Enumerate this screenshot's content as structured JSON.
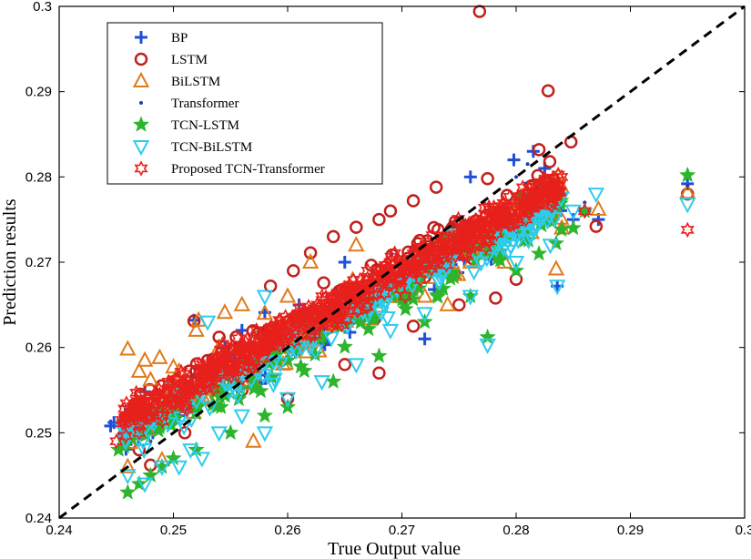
{
  "chart_data": {
    "type": "scatter",
    "title": "",
    "xlabel": "True Output value",
    "ylabel": "Prediction results",
    "xlim": [
      0.24,
      0.3
    ],
    "ylim": [
      0.24,
      0.3
    ],
    "xticks": [
      "0.24",
      "0.25",
      "0.26",
      "0.27",
      "0.28",
      "0.29",
      "0.3"
    ],
    "yticks": [
      "0.24",
      "0.25",
      "0.26",
      "0.27",
      "0.28",
      "0.29",
      "0.3"
    ],
    "grid": false,
    "legend_position": "top-left",
    "diagonal": {
      "style": "dashed",
      "color": "#000000",
      "from": [
        0.24,
        0.24
      ],
      "to": [
        0.3,
        0.3
      ]
    },
    "series": [
      {
        "name": "BP",
        "marker": "plus",
        "color": "#1f4fd8",
        "points": [
          [
            0.2445,
            0.2508
          ],
          [
            0.2448,
            0.2512
          ],
          [
            0.2458,
            0.2492
          ],
          [
            0.2462,
            0.2528
          ],
          [
            0.2475,
            0.2548
          ],
          [
            0.2482,
            0.25
          ],
          [
            0.2505,
            0.252
          ],
          [
            0.2518,
            0.2632
          ],
          [
            0.2532,
            0.258
          ],
          [
            0.2545,
            0.26
          ],
          [
            0.256,
            0.262
          ],
          [
            0.258,
            0.2641
          ],
          [
            0.261,
            0.265
          ],
          [
            0.265,
            0.27
          ],
          [
            0.27,
            0.27
          ],
          [
            0.272,
            0.261
          ],
          [
            0.276,
            0.28
          ],
          [
            0.2798,
            0.282
          ],
          [
            0.2815,
            0.283
          ],
          [
            0.2825,
            0.281
          ],
          [
            0.2836,
            0.2672
          ],
          [
            0.285,
            0.275
          ],
          [
            0.286,
            0.276
          ],
          [
            0.2872,
            0.275
          ],
          [
            0.295,
            0.2792
          ]
        ]
      },
      {
        "name": "LSTM",
        "marker": "circle",
        "color": "#c0201c",
        "points": [
          [
            0.2768,
            0.2994
          ],
          [
            0.2828,
            0.2901
          ],
          [
            0.2848,
            0.2841
          ],
          [
            0.282,
            0.2832
          ],
          [
            0.2775,
            0.2798
          ],
          [
            0.273,
            0.2788
          ],
          [
            0.271,
            0.2772
          ],
          [
            0.269,
            0.276
          ],
          [
            0.268,
            0.275
          ],
          [
            0.266,
            0.2741
          ],
          [
            0.264,
            0.273
          ],
          [
            0.262,
            0.2711
          ],
          [
            0.2605,
            0.269
          ],
          [
            0.2585,
            0.2672
          ],
          [
            0.254,
            0.2612
          ],
          [
            0.2518,
            0.2631
          ],
          [
            0.2462,
            0.252
          ],
          [
            0.247,
            0.248
          ],
          [
            0.248,
            0.2462
          ],
          [
            0.251,
            0.25
          ],
          [
            0.256,
            0.255
          ],
          [
            0.26,
            0.254
          ],
          [
            0.265,
            0.258
          ],
          [
            0.268,
            0.257
          ],
          [
            0.271,
            0.2625
          ],
          [
            0.275,
            0.265
          ],
          [
            0.2782,
            0.2658
          ],
          [
            0.28,
            0.268
          ],
          [
            0.287,
            0.2742
          ],
          [
            0.295,
            0.278
          ]
        ]
      },
      {
        "name": "BiLSTM",
        "marker": "triangle-up",
        "color": "#e07a1a",
        "points": [
          [
            0.246,
            0.2598
          ],
          [
            0.247,
            0.2572
          ],
          [
            0.2475,
            0.2585
          ],
          [
            0.248,
            0.2562
          ],
          [
            0.2488,
            0.2588
          ],
          [
            0.25,
            0.2577
          ],
          [
            0.2505,
            0.2572
          ],
          [
            0.252,
            0.262
          ],
          [
            0.2522,
            0.2632
          ],
          [
            0.254,
            0.26
          ],
          [
            0.2545,
            0.2641
          ],
          [
            0.256,
            0.265
          ],
          [
            0.258,
            0.264
          ],
          [
            0.26,
            0.266
          ],
          [
            0.262,
            0.27
          ],
          [
            0.266,
            0.272
          ],
          [
            0.272,
            0.266
          ],
          [
            0.274,
            0.265
          ],
          [
            0.276,
            0.27
          ],
          [
            0.279,
            0.27
          ],
          [
            0.2835,
            0.2692
          ],
          [
            0.284,
            0.274
          ],
          [
            0.2872,
            0.2762
          ],
          [
            0.246,
            0.246
          ],
          [
            0.249,
            0.2468
          ],
          [
            0.257,
            0.249
          ],
          [
            0.295,
            0.2782
          ]
        ]
      },
      {
        "name": "Transformer",
        "marker": "dot",
        "color": "#1f3fa8",
        "points": [
          [
            0.245,
            0.248
          ],
          [
            0.248,
            0.249
          ],
          [
            0.25,
            0.252
          ],
          [
            0.255,
            0.256
          ],
          [
            0.26,
            0.26
          ],
          [
            0.265,
            0.265
          ],
          [
            0.27,
            0.269
          ],
          [
            0.275,
            0.274
          ],
          [
            0.28,
            0.28
          ],
          [
            0.281,
            0.2815
          ],
          [
            0.283,
            0.279
          ],
          [
            0.286,
            0.277
          ],
          [
            0.295,
            0.279
          ]
        ]
      },
      {
        "name": "TCN-LSTM",
        "marker": "star",
        "color": "#2db52d",
        "points": [
          [
            0.246,
            0.243
          ],
          [
            0.247,
            0.244
          ],
          [
            0.248,
            0.245
          ],
          [
            0.249,
            0.246
          ],
          [
            0.25,
            0.247
          ],
          [
            0.252,
            0.248
          ],
          [
            0.255,
            0.25
          ],
          [
            0.258,
            0.252
          ],
          [
            0.26,
            0.253
          ],
          [
            0.264,
            0.256
          ],
          [
            0.268,
            0.259
          ],
          [
            0.272,
            0.263
          ],
          [
            0.276,
            0.266
          ],
          [
            0.2775,
            0.2612
          ],
          [
            0.28,
            0.269
          ],
          [
            0.282,
            0.271
          ],
          [
            0.2835,
            0.2722
          ],
          [
            0.285,
            0.274
          ],
          [
            0.286,
            0.276
          ],
          [
            0.295,
            0.2802
          ],
          [
            0.2452,
            0.248
          ]
        ]
      },
      {
        "name": "TCN-BiLSTM",
        "marker": "triangle-down",
        "color": "#2ecbef",
        "points": [
          [
            0.246,
            0.245
          ],
          [
            0.2475,
            0.244
          ],
          [
            0.249,
            0.246
          ],
          [
            0.2505,
            0.246
          ],
          [
            0.2515,
            0.248
          ],
          [
            0.2525,
            0.247
          ],
          [
            0.254,
            0.25
          ],
          [
            0.256,
            0.252
          ],
          [
            0.258,
            0.25
          ],
          [
            0.26,
            0.254
          ],
          [
            0.263,
            0.256
          ],
          [
            0.266,
            0.258
          ],
          [
            0.269,
            0.262
          ],
          [
            0.272,
            0.264
          ],
          [
            0.276,
            0.266
          ],
          [
            0.2775,
            0.2603
          ],
          [
            0.28,
            0.27
          ],
          [
            0.283,
            0.272
          ],
          [
            0.2836,
            0.2672
          ],
          [
            0.285,
            0.276
          ],
          [
            0.287,
            0.278
          ],
          [
            0.295,
            0.2768
          ],
          [
            0.253,
            0.263
          ],
          [
            0.258,
            0.266
          ]
        ]
      },
      {
        "name": "Proposed TCN-Transformer",
        "marker": "hexagram",
        "color": "#e8201c",
        "points": [
          [
            0.245,
            0.249
          ],
          [
            0.247,
            0.25
          ],
          [
            0.249,
            0.252
          ],
          [
            0.251,
            0.253
          ],
          [
            0.253,
            0.256
          ],
          [
            0.255,
            0.258
          ],
          [
            0.257,
            0.26
          ],
          [
            0.259,
            0.262
          ],
          [
            0.261,
            0.264
          ],
          [
            0.263,
            0.266
          ],
          [
            0.265,
            0.267
          ],
          [
            0.267,
            0.269
          ],
          [
            0.269,
            0.27
          ],
          [
            0.271,
            0.271
          ],
          [
            0.273,
            0.272
          ],
          [
            0.275,
            0.273
          ],
          [
            0.277,
            0.274
          ],
          [
            0.279,
            0.276
          ],
          [
            0.281,
            0.278
          ],
          [
            0.283,
            0.2782
          ],
          [
            0.286,
            0.276
          ],
          [
            0.295,
            0.2738
          ]
        ]
      }
    ]
  }
}
